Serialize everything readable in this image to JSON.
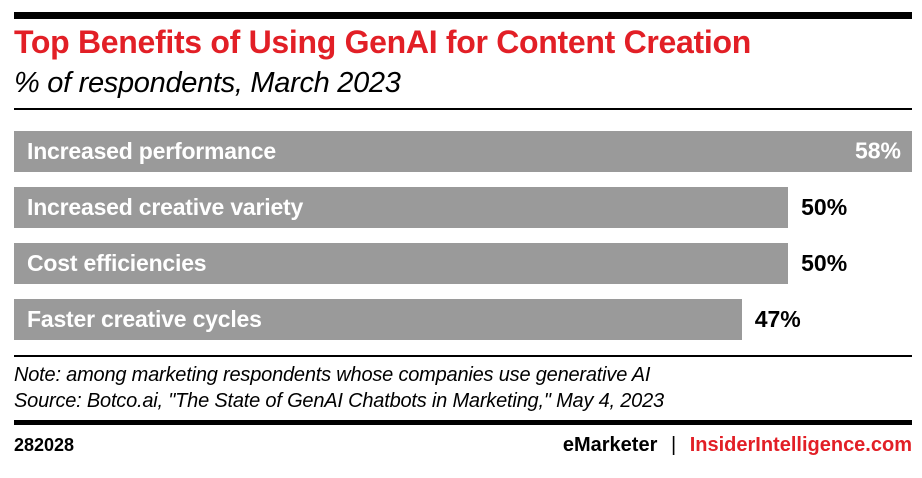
{
  "colors": {
    "accent_red": "#e21f26",
    "bar_gray": "#9a9a9a",
    "ink": "#000000",
    "bar_label_white": "#ffffff"
  },
  "header": {
    "title": "Top Benefits of Using GenAI for Content Creation",
    "subtitle": "% of respondents, March 2023"
  },
  "chart_data": {
    "type": "bar",
    "orientation": "horizontal",
    "title": "Top Benefits of Using GenAI for Content Creation",
    "subtitle": "% of respondents, March 2023",
    "categories": [
      "Increased performance",
      "Increased creative variety",
      "Cost efficiencies",
      "Faster creative cycles"
    ],
    "values": [
      58,
      50,
      50,
      47
    ],
    "value_labels": [
      "58%",
      "50%",
      "50%",
      "47%"
    ],
    "xlabel": "",
    "ylabel": "",
    "xlim": [
      0,
      58
    ],
    "grid": false,
    "legend": null,
    "bar_color": "#9a9a9a"
  },
  "footnote": {
    "note": "Note: among marketing respondents whose companies use generative AI",
    "source": "Source: Botco.ai, \"The State of GenAI Chatbots in Marketing,\" May 4, 2023"
  },
  "footer": {
    "chart_id": "282028",
    "brand_emarketer": "eMarketer",
    "separator": "|",
    "brand_insider": "InsiderIntelligence.com"
  }
}
